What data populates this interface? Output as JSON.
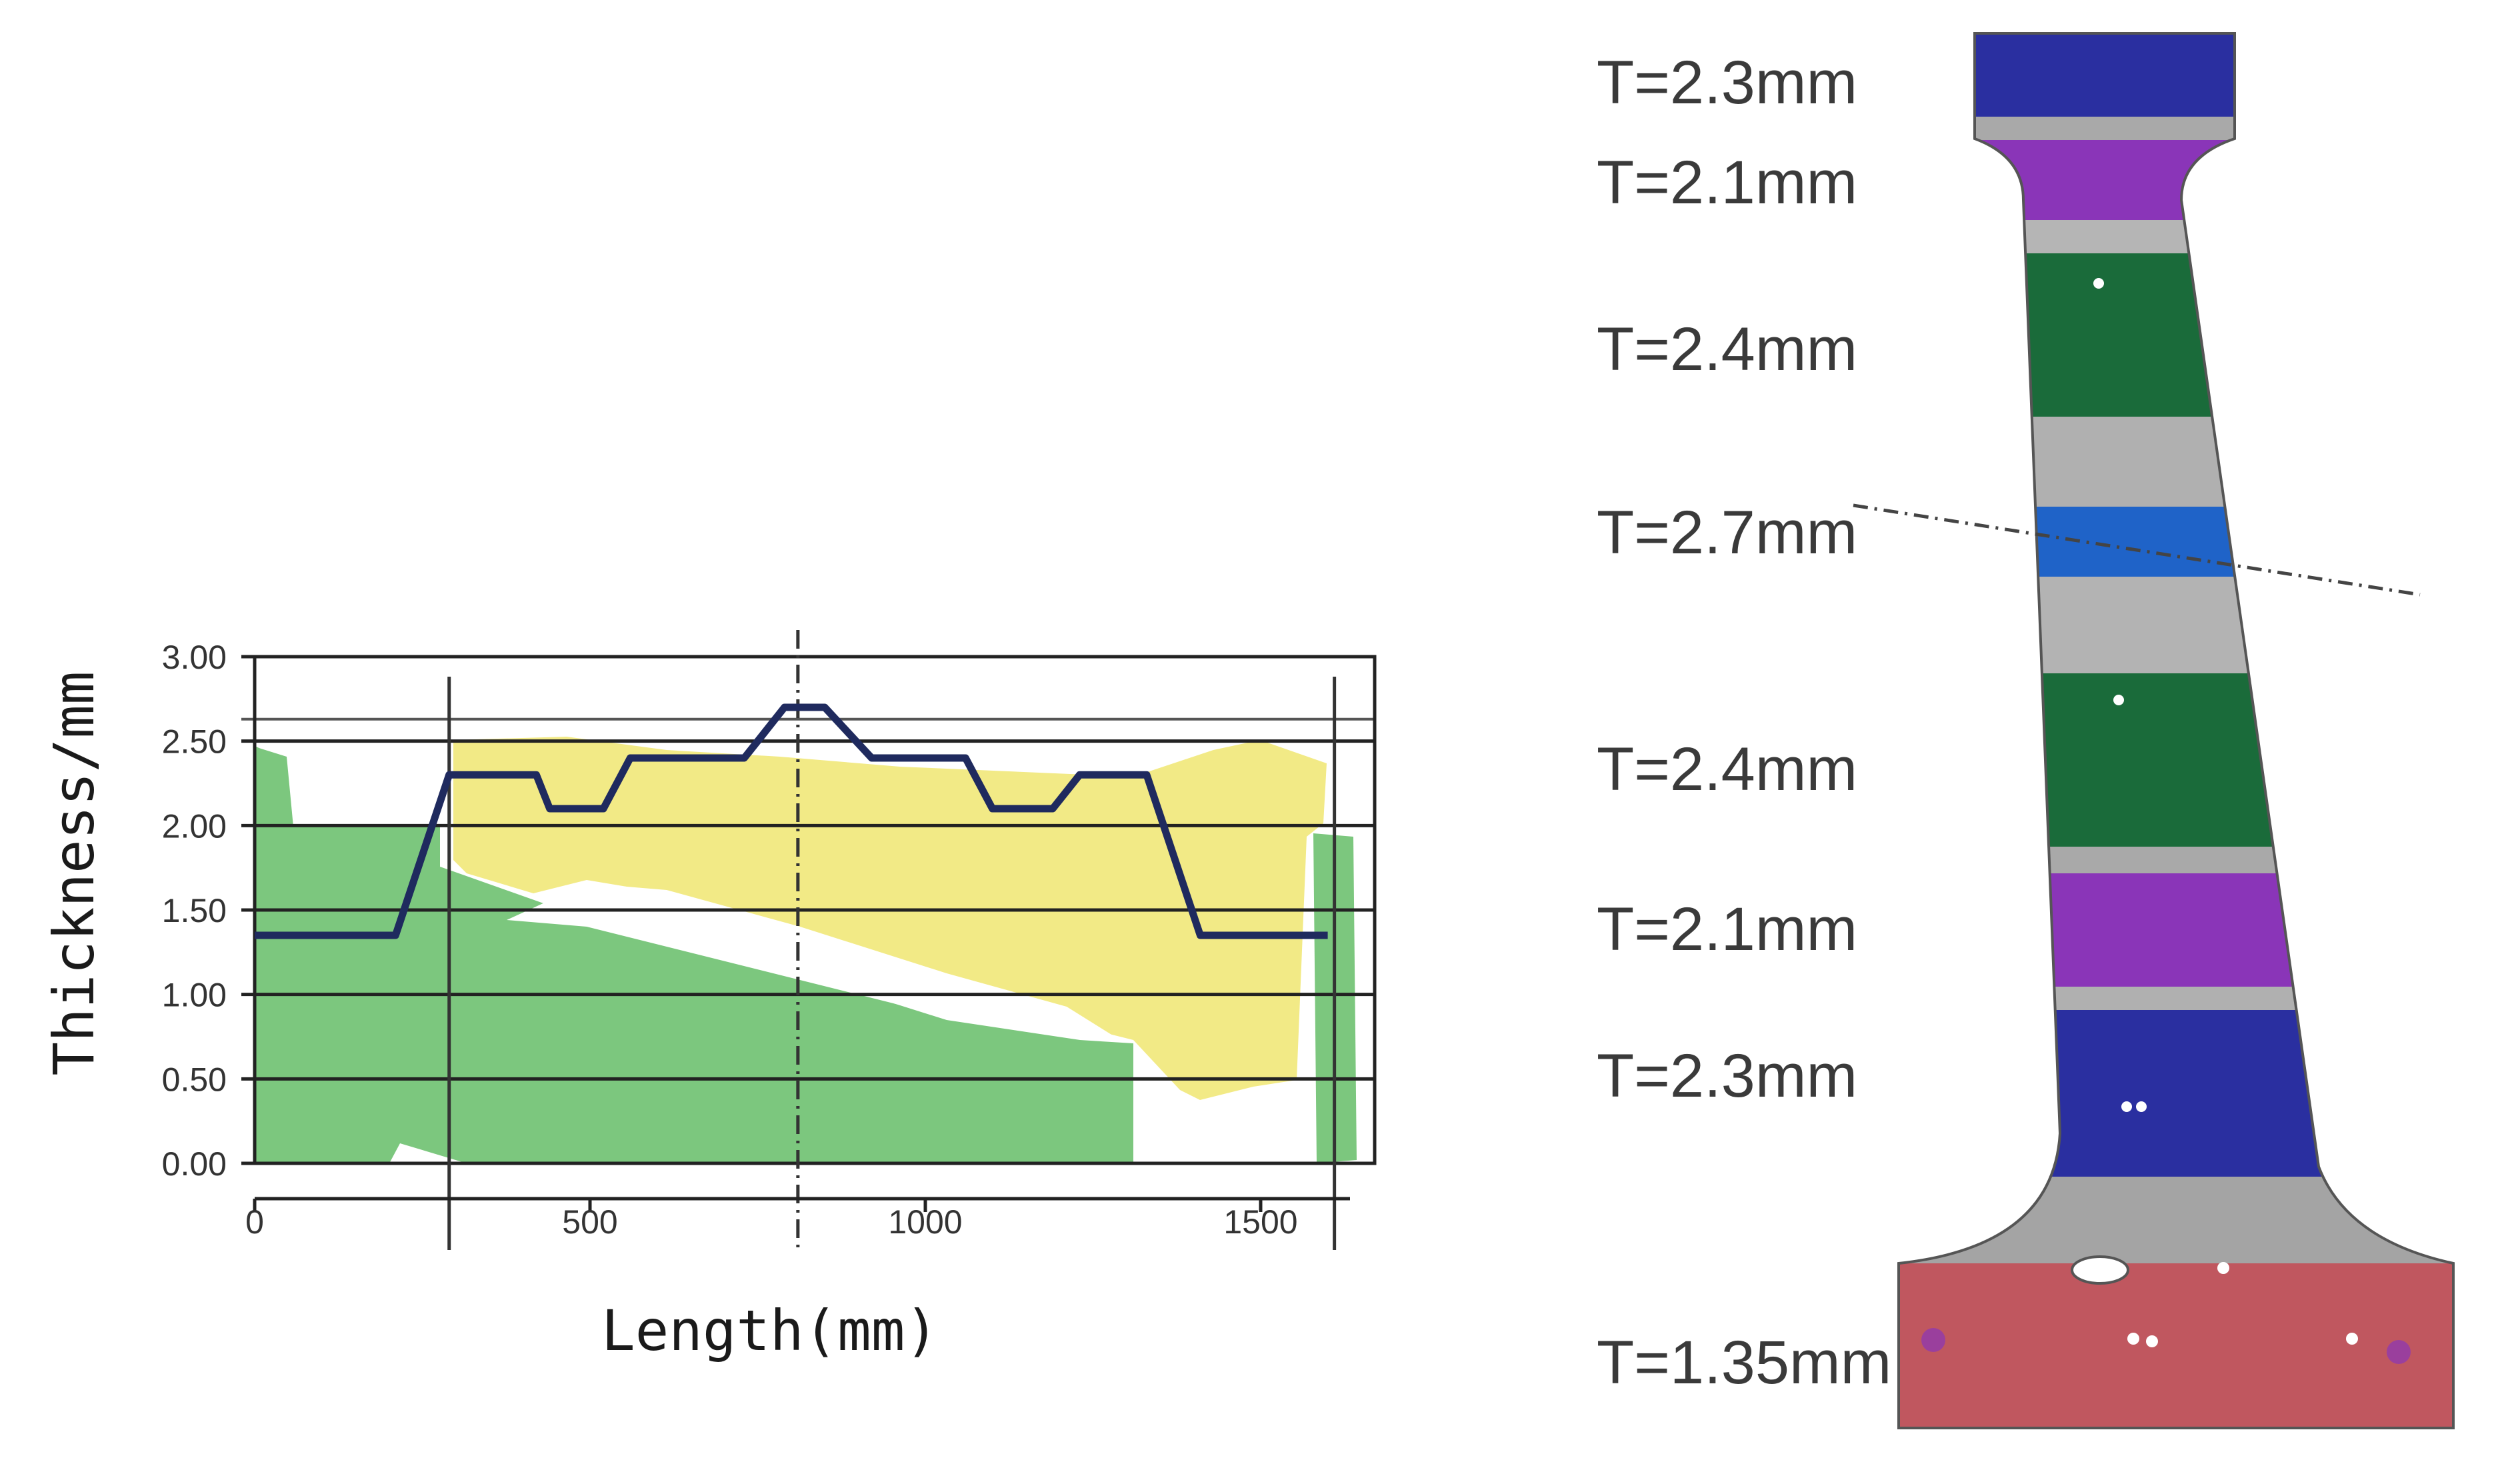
{
  "chart_data": {
    "type": "line",
    "title": "",
    "xlabel": "Length(mm)",
    "ylabel": "Thickness/mm",
    "xlim": [
      0,
      1670
    ],
    "ylim": [
      0,
      3.0
    ],
    "x_ticks": [
      0,
      500,
      1000,
      1500
    ],
    "x_tick_labels": [
      "0",
      "500",
      "1000",
      "1500"
    ],
    "y_ticks": [
      0,
      0.5,
      1.0,
      1.5,
      2.0,
      2.5,
      3.0
    ],
    "y_tick_labels": [
      "0.00",
      "0.50",
      "1.00",
      "1.50",
      "2.00",
      "2.50",
      "3.00"
    ],
    "grid": "horizontal",
    "reference_lines_x": [
      290,
      810,
      1610
    ],
    "series": [
      {
        "color": "#1f2a5e",
        "x": [
          0,
          210,
          290,
          420,
          440,
          520,
          560,
          730,
          790,
          850,
          920,
          1060,
          1100,
          1190,
          1230,
          1330,
          1410,
          1600
        ],
        "y": [
          1.35,
          1.35,
          2.3,
          2.3,
          2.1,
          2.1,
          2.4,
          2.4,
          2.7,
          2.7,
          2.4,
          2.4,
          2.1,
          2.1,
          2.3,
          2.3,
          1.35,
          1.35
        ]
      }
    ],
    "colors": {
      "green_region": "#7cc77e",
      "yellow_region": "#f2ea86",
      "grid": "#222222"
    }
  },
  "part": {
    "thickness_labels": [
      {
        "text": "T=2.3mm",
        "color": "#2a2fa0"
      },
      {
        "text": "T=2.1mm",
        "color": "#8a35b8"
      },
      {
        "text": "T=2.4mm",
        "color": "#1a6b3a"
      },
      {
        "text": "T=2.7mm",
        "color": "#1f63c8"
      },
      {
        "text": "T=2.4mm",
        "color": "#1a6b3a"
      },
      {
        "text": "T=2.1mm",
        "color": "#8a35b8"
      },
      {
        "text": "T=2.3mm",
        "color": "#2a2fa0"
      },
      {
        "text": "T=1.35mm",
        "color": "#c0575f"
      }
    ]
  }
}
